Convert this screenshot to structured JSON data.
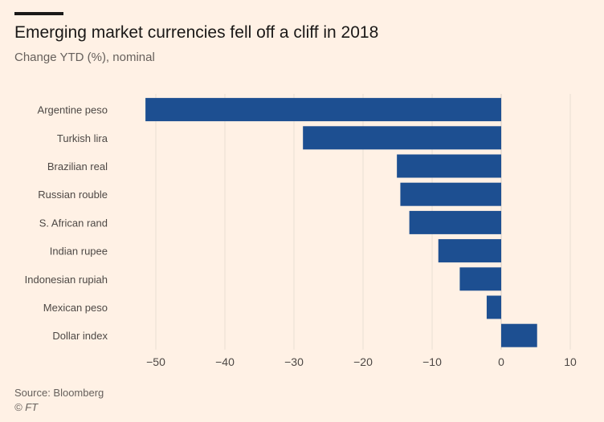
{
  "chart_data": {
    "type": "bar",
    "orientation": "horizontal",
    "title": "Emerging market currencies fell off a cliff in 2018",
    "subtitle": "Change YTD (%), nominal",
    "categories": [
      "Argentine peso",
      "Turkish lira",
      "Brazilian real",
      "Russian rouble",
      "S. African rand",
      "Indian rupee",
      "Indonesian rupiah",
      "Mexican peso",
      "Dollar index"
    ],
    "values": [
      -51.5,
      -28.7,
      -15.1,
      -14.6,
      -13.3,
      -9.1,
      -6.0,
      -2.1,
      5.2
    ],
    "xlim": [
      -55,
      11
    ],
    "xticks": [
      -50,
      -40,
      -30,
      -20,
      -10,
      0,
      10
    ],
    "xlabel": "",
    "ylabel": "",
    "grid": "vertical",
    "bar_color": "#1d4f91"
  },
  "footer": {
    "source": "Source: Bloomberg",
    "credit": "© FT"
  }
}
